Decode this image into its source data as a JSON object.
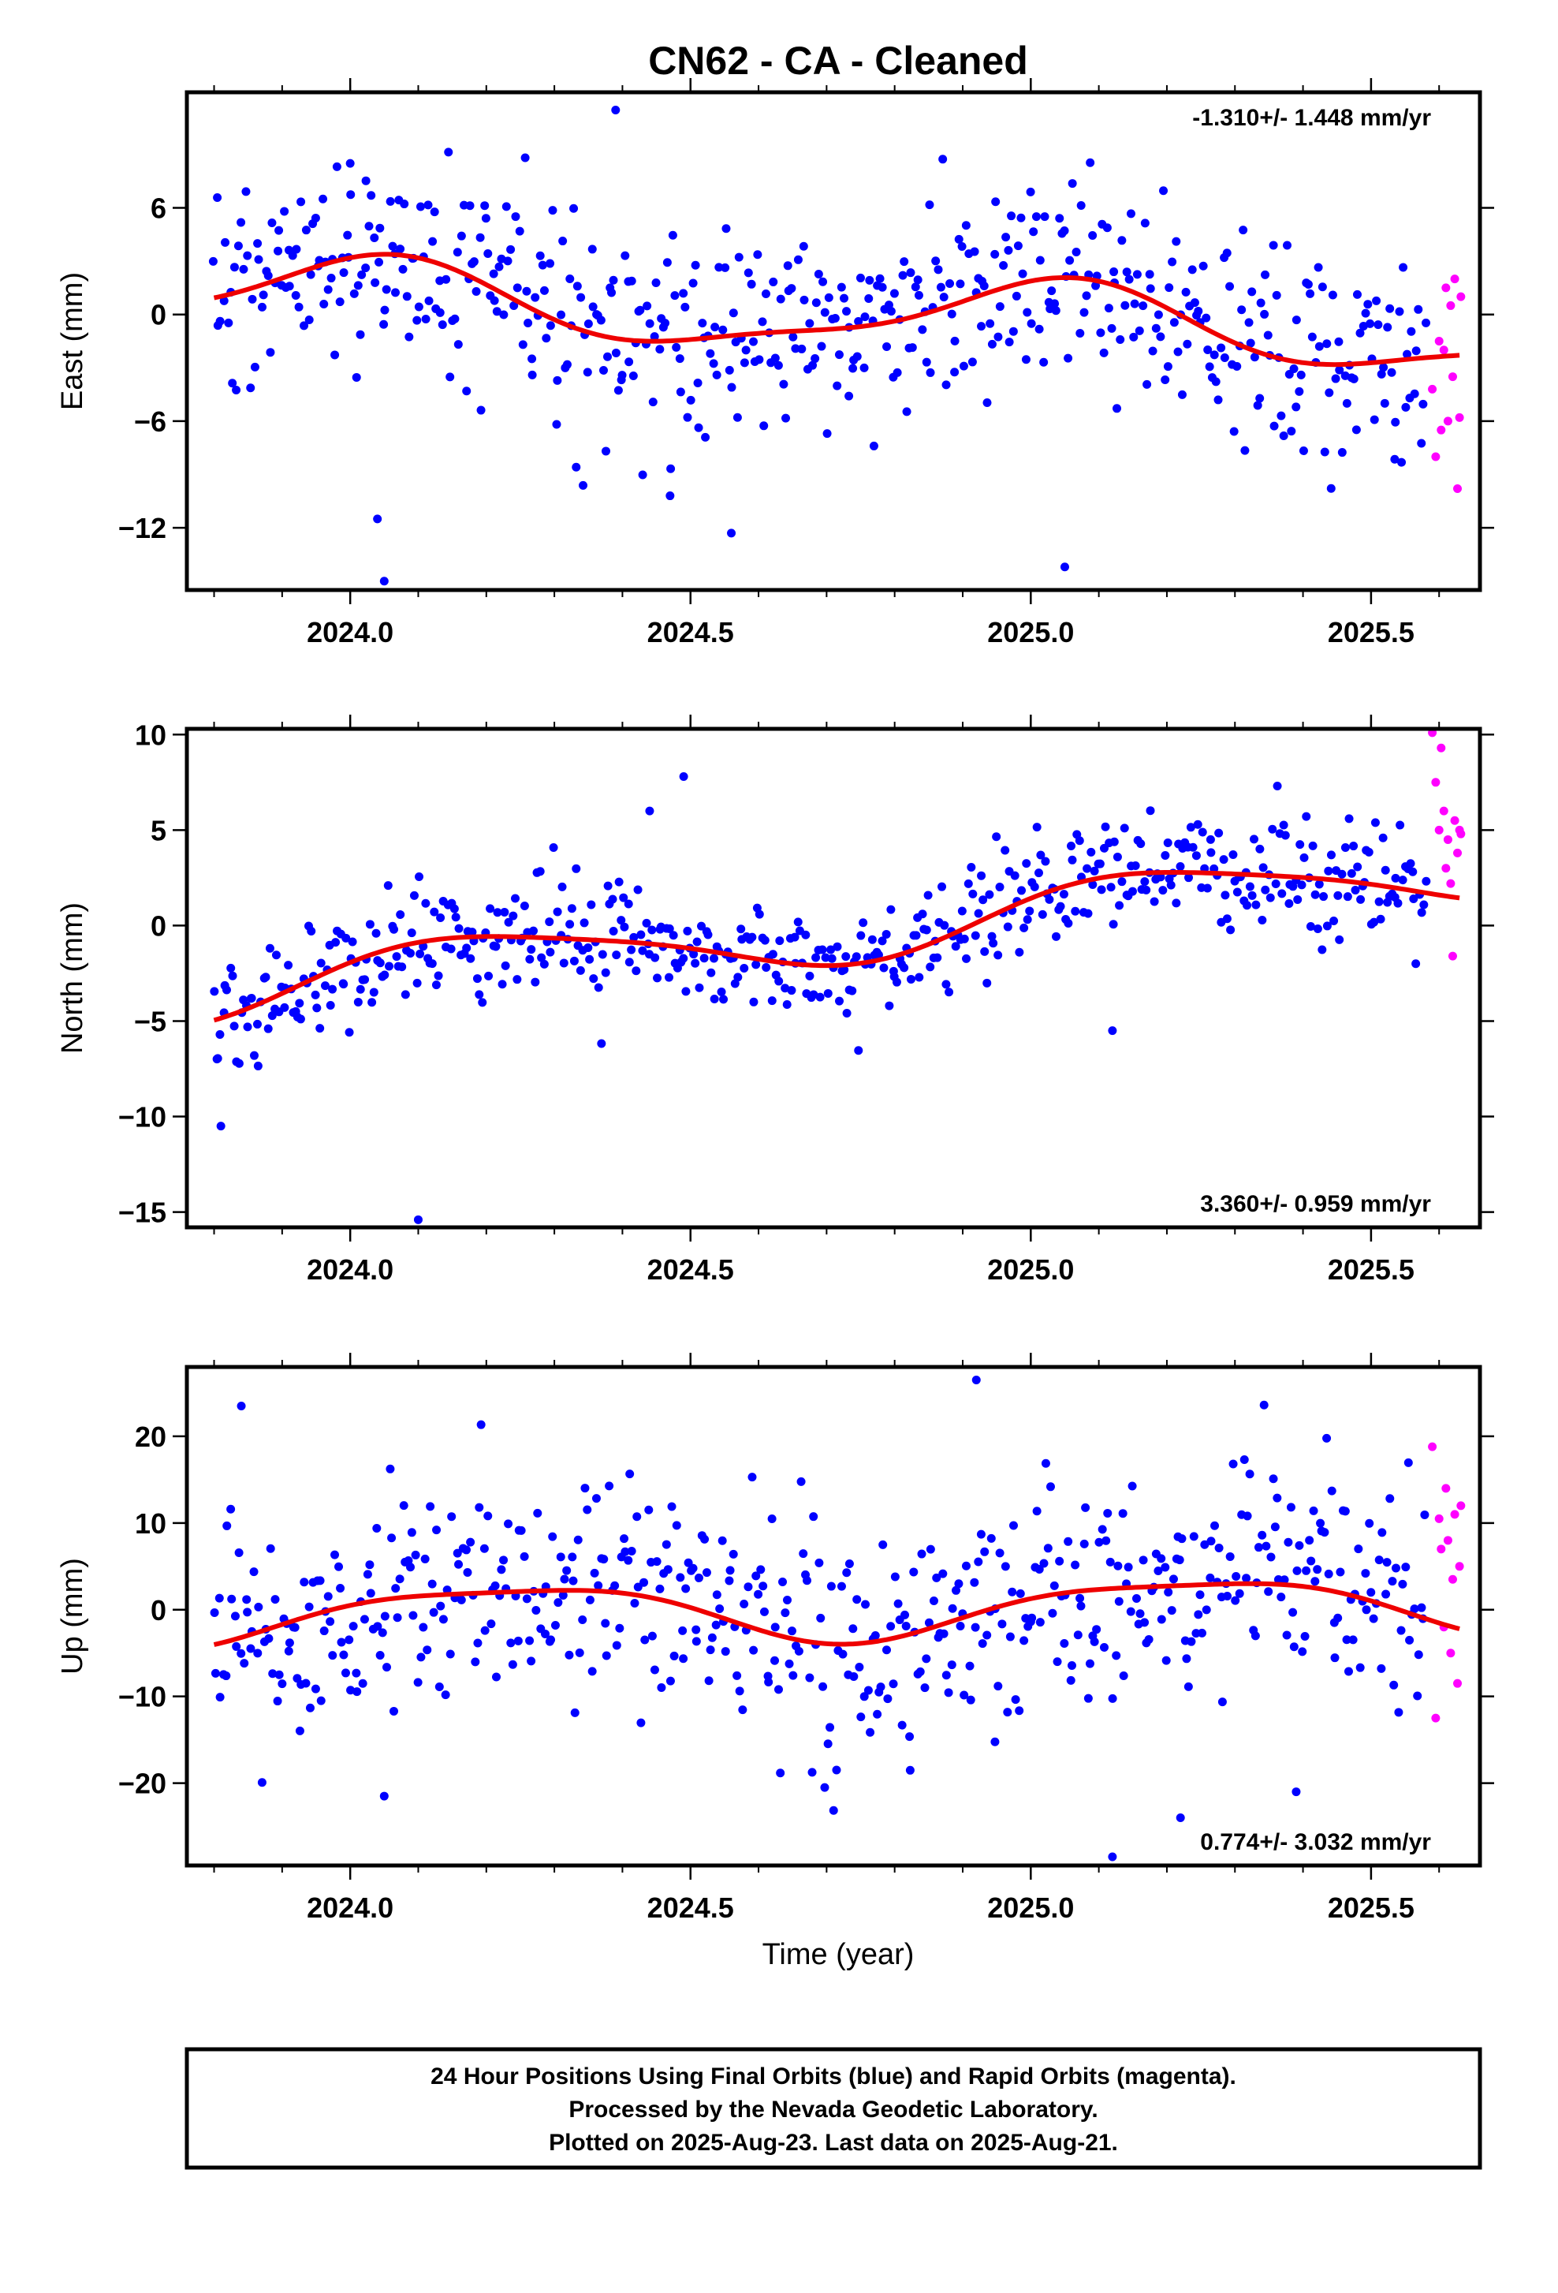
{
  "title": "CN62  - CA - Cleaned",
  "xlabel": "Time (year)",
  "footer": [
    "24 Hour Positions Using Final Orbits (blue) and Rapid Orbits (magenta).",
    "Processed by the Nevada Geodetic Laboratory.",
    "Plotted on 2025-Aug-23. Last data on 2025-Aug-21."
  ],
  "colors": {
    "final": "#0000ff",
    "rapid": "#ff00ff",
    "model": "#ee0000",
    "frame": "#000000"
  },
  "chart_data": [
    {
      "type": "scatter",
      "ylabel": "East (mm)",
      "rate_text": "-1.310+/- 1.448 mm/yr",
      "rate_position": "top-right",
      "xlim": [
        2023.76,
        2025.66
      ],
      "ylim": [
        -15.5,
        12.5
      ],
      "x_ticks": [
        2024.0,
        2024.5,
        2025.0,
        2025.5
      ],
      "x_tick_labels": [
        "2024.0",
        "2024.5",
        "2025.0",
        "2025.5"
      ],
      "y_ticks": [
        6,
        0,
        -6,
        -12
      ],
      "y_tick_labels": [
        "6",
        "0",
        "−6",
        "−12"
      ],
      "model": {
        "name": "fit",
        "offset": 0.0,
        "rate": -1.31,
        "annual_amp": 2.0,
        "annual_phase": 1.4,
        "semi_amp": 0.6,
        "semi_phase": 0.5,
        "x_start": 2023.8,
        "x_end": 2025.63
      },
      "final_orbits": {
        "x_start": 2023.8,
        "x_end": 2025.58,
        "scatter_sd": 3.0,
        "count": 540,
        "outliers": [
          [
            2024.0,
            8.5
          ],
          [
            2024.05,
            -15.0
          ],
          [
            2024.39,
            11.5
          ],
          [
            2024.56,
            -12.3
          ],
          [
            2025.05,
            -14.2
          ],
          [
            2024.04,
            -11.5
          ],
          [
            2024.47,
            -10.2
          ]
        ]
      },
      "rapid_orbits": {
        "x": [
          2025.59,
          2025.595,
          2025.6,
          2025.603,
          2025.607,
          2025.61,
          2025.613,
          2025.617,
          2025.62,
          2025.623,
          2025.627,
          2025.63,
          2025.632
        ],
        "y": [
          -4.2,
          -8.0,
          -1.5,
          -6.5,
          -2.0,
          1.5,
          -6.0,
          0.5,
          -3.5,
          2.0,
          -9.8,
          -5.8,
          1.0
        ]
      }
    },
    {
      "type": "scatter",
      "ylabel": "North (mm)",
      "rate_text": "3.360+/- 0.959 mm/yr",
      "rate_position": "bottom-right",
      "xlim": [
        2023.76,
        2025.66
      ],
      "ylim": [
        -15.8,
        10.3
      ],
      "x_ticks": [
        2024.0,
        2024.5,
        2025.0,
        2025.5
      ],
      "x_tick_labels": [
        "2024.0",
        "2024.5",
        "2025.0",
        "2025.5"
      ],
      "y_ticks": [
        10,
        5,
        0,
        -5,
        -10,
        -15
      ],
      "y_tick_labels": [
        "10",
        "5",
        "0",
        "−5",
        "−10",
        "−15"
      ],
      "model": {
        "name": "fit",
        "offset": -0.3,
        "rate": 3.36,
        "annual_amp": 1.6,
        "annual_phase": 0.3,
        "semi_amp": 0.3,
        "semi_phase": 1.2,
        "x_start": 2023.8,
        "x_end": 2025.63
      },
      "final_orbits": {
        "x_start": 2023.8,
        "x_end": 2025.58,
        "scatter_sd": 1.5,
        "count": 540,
        "outliers": [
          [
            2023.81,
            -10.5
          ],
          [
            2024.1,
            -15.4
          ],
          [
            2024.49,
            7.8
          ],
          [
            2025.12,
            -5.5
          ],
          [
            2024.44,
            6.0
          ]
        ]
      },
      "rapid_orbits": {
        "x": [
          2025.59,
          2025.595,
          2025.6,
          2025.603,
          2025.607,
          2025.61,
          2025.613,
          2025.617,
          2025.62,
          2025.623,
          2025.627,
          2025.63,
          2025.632
        ],
        "y": [
          10.1,
          7.5,
          5.0,
          9.3,
          6.0,
          3.0,
          4.5,
          2.2,
          -1.6,
          5.5,
          3.8,
          5.0,
          4.8
        ]
      }
    },
    {
      "type": "scatter",
      "ylabel": "Up (mm)",
      "rate_text": "0.774+/- 3.032 mm/yr",
      "rate_position": "bottom-right",
      "xlim": [
        2023.76,
        2025.66
      ],
      "ylim": [
        -29.5,
        28.0
      ],
      "x_ticks": [
        2024.0,
        2024.5,
        2025.0,
        2025.5
      ],
      "x_tick_labels": [
        "2024.0",
        "2024.5",
        "2025.0",
        "2025.5"
      ],
      "y_ticks": [
        20,
        10,
        0,
        -10,
        -20
      ],
      "y_tick_labels": [
        "20",
        "10",
        "0",
        "−10",
        "−20"
      ],
      "model": {
        "name": "fit",
        "offset": 0.0,
        "rate": 0.774,
        "annual_amp": 3.2,
        "annual_phase": 0.1,
        "semi_amp": 0.8,
        "semi_phase": 2.0,
        "x_start": 2023.8,
        "x_end": 2025.63
      },
      "final_orbits": {
        "x_start": 2023.8,
        "x_end": 2025.58,
        "scatter_sd": 6.5,
        "count": 540,
        "outliers": [
          [
            2024.92,
            26.5
          ],
          [
            2025.12,
            -28.5
          ],
          [
            2023.84,
            23.5
          ],
          [
            2024.05,
            -21.5
          ],
          [
            2025.22,
            -24.0
          ],
          [
            2025.39,
            -21.0
          ]
        ]
      },
      "rapid_orbits": {
        "x": [
          2025.59,
          2025.595,
          2025.6,
          2025.603,
          2025.607,
          2025.61,
          2025.613,
          2025.617,
          2025.62,
          2025.623,
          2025.627,
          2025.63,
          2025.632
        ],
        "y": [
          18.8,
          -12.5,
          10.5,
          7.0,
          -2.0,
          14.0,
          8.0,
          -5.0,
          3.5,
          11.0,
          -8.5,
          5.0,
          12.0
        ]
      }
    }
  ]
}
